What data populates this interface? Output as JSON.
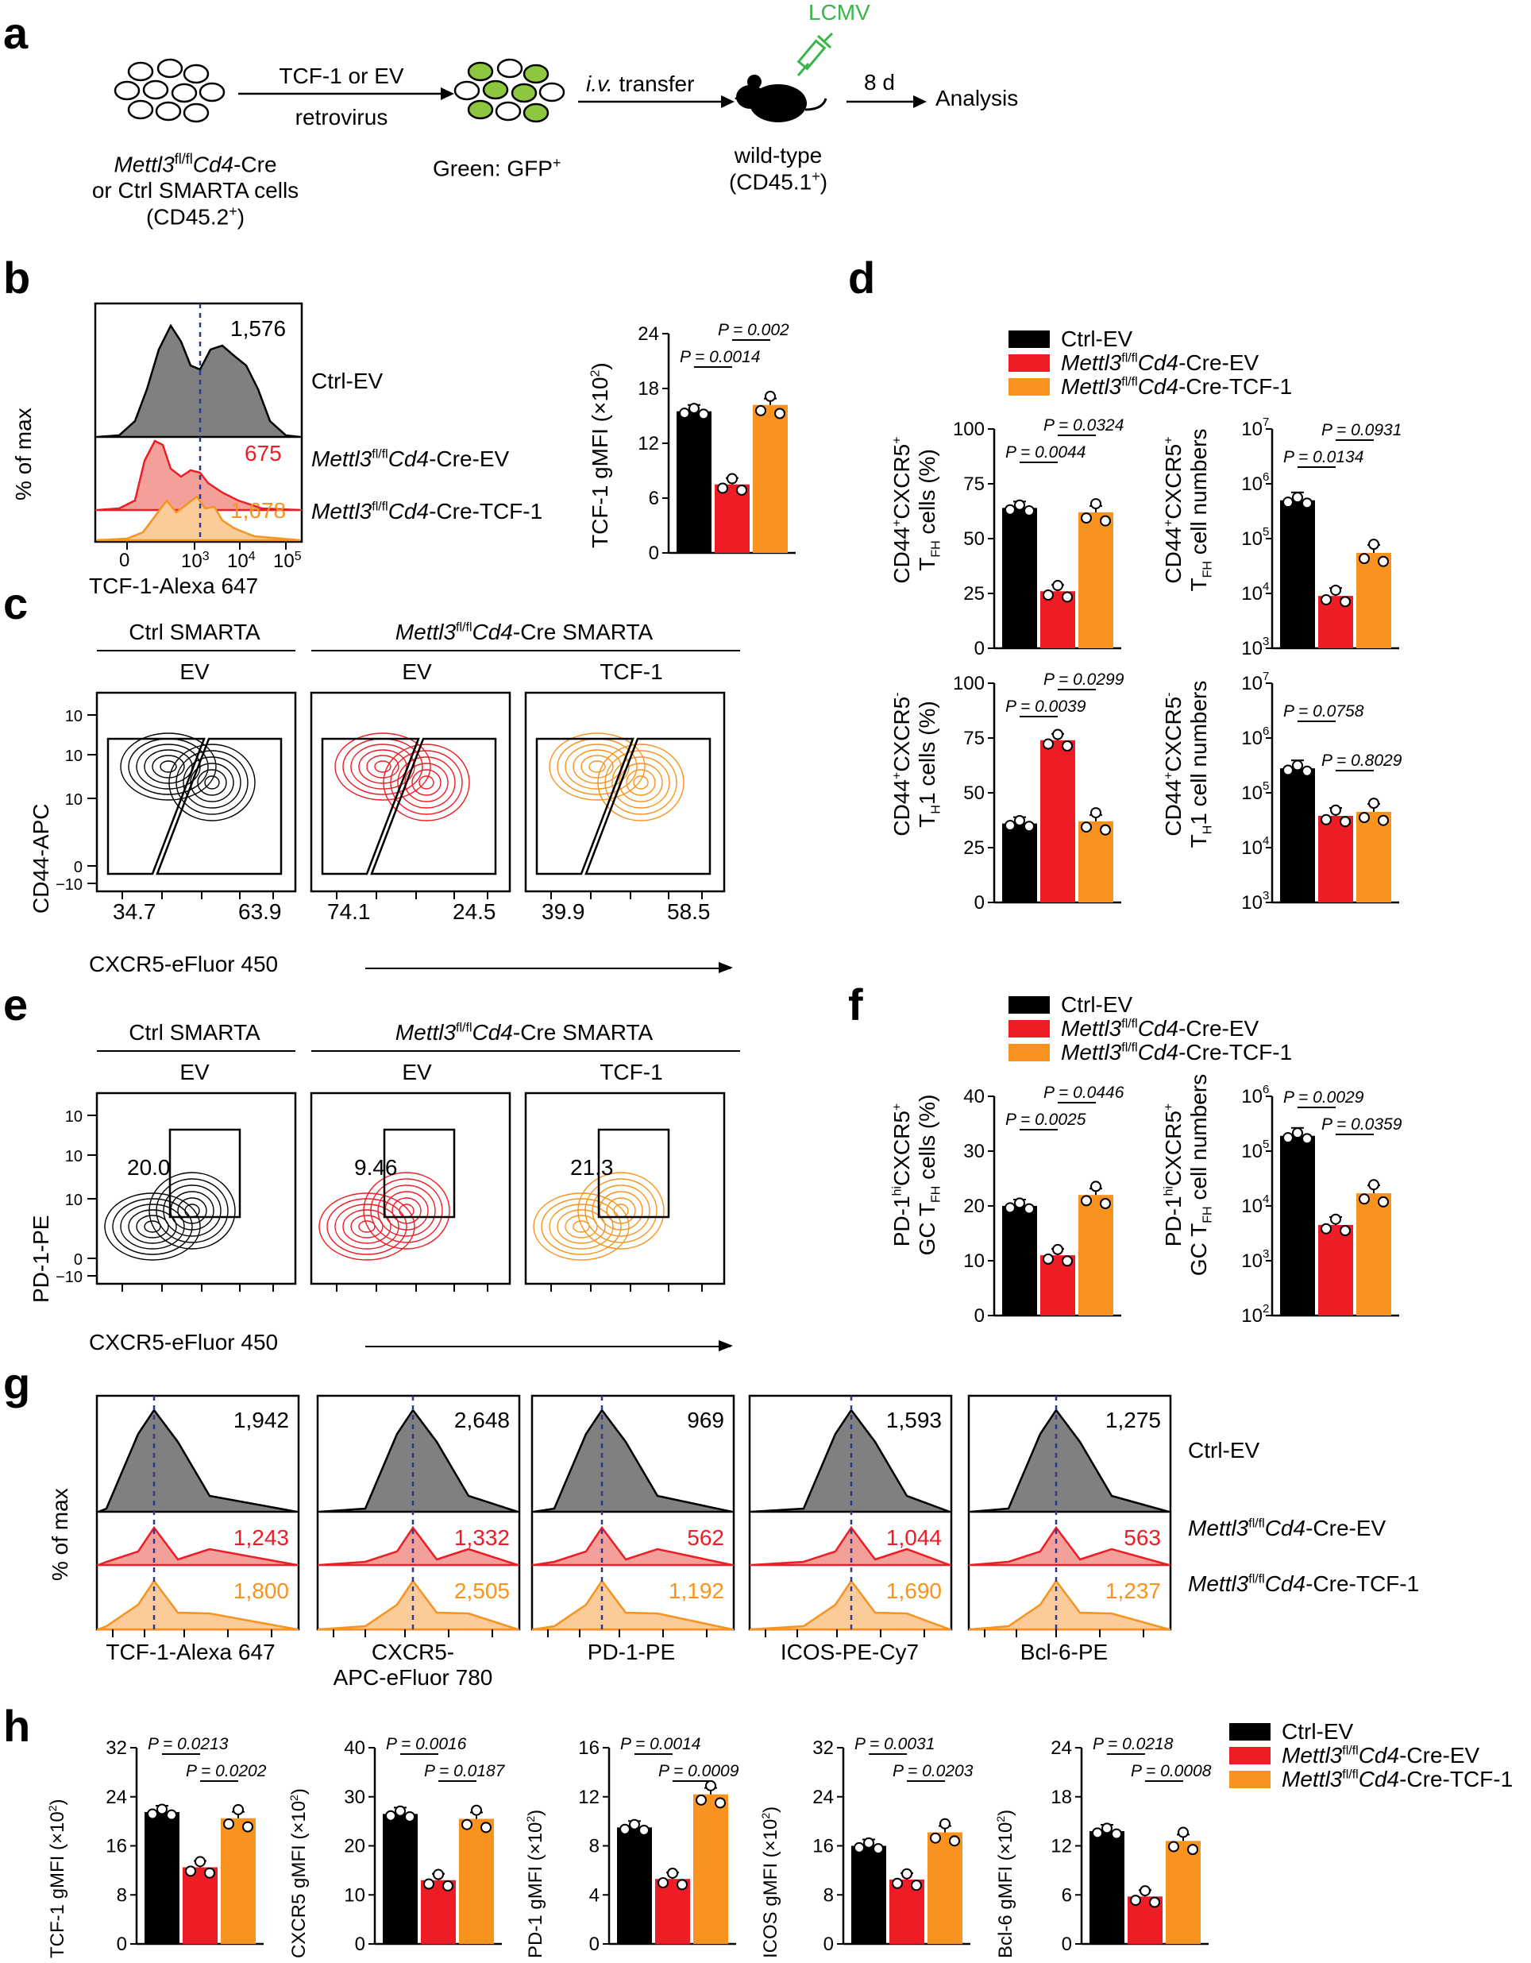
{
  "panels": {
    "a": "a",
    "b": "b",
    "c": "c",
    "d": "d",
    "e": "e",
    "f": "f",
    "g": "g",
    "h": "h"
  },
  "colors": {
    "ctrl": "#000000",
    "ko": "#ee1c25",
    "tcf": "#f7931e",
    "gfp": "#8dc63f",
    "lcmv": "#39b54a",
    "dash": "#2b3990"
  },
  "schematic": {
    "cells_label_line1_italic": "Mettl3",
    "cells_label_line1_sup": "fl/fl",
    "cells_label_line1_italic2": "Cd4",
    "cells_label_line1_rest": "-Cre",
    "cells_label_line2": "or Ctrl SMARTA cells",
    "cells_label_line3": "(CD45.2",
    "cells_label_line3_sup": "+",
    "cells_label_line3_end": ")",
    "arrow1_top": "TCF-1 or EV",
    "arrow1_bottom": "retrovirus",
    "green_label": "Green: GFP",
    "green_label_sup": "+",
    "transfer_italic": "i.v.",
    "transfer_rest": " transfer",
    "lcmv": "LCMV",
    "mouse_line1": "wild-type",
    "mouse_line2": "(CD45.1",
    "mouse_line2_sup": "+",
    "mouse_line2_end": ")",
    "time": "8 d",
    "analysis": "Analysis"
  },
  "groups": {
    "ctrl_ev": "Ctrl-EV",
    "ko_ev_italic": "Mettl3",
    "ko_sup": "fl/fl",
    "ko_italic2": "Cd4",
    "ko_ev_rest": "-Cre-EV",
    "ko_tcf_rest": "-Cre-TCF-1"
  },
  "panel_b": {
    "ylabel": "% of max",
    "xlabel": "TCF-1-Alexa 647",
    "values": [
      "1,576",
      "675",
      "1,678"
    ],
    "xticks": [
      "0",
      "10",
      "10",
      "10"
    ],
    "xtick_exp": [
      "",
      "3",
      "4",
      "5"
    ],
    "bar_ylabel": "TCF-1 gMFI (×10",
    "bar_ylabel_sup": "2",
    "bar_ylabel_end": ")",
    "bar_yticks": [
      "0",
      "6",
      "12",
      "18",
      "24"
    ],
    "bar_p": [
      "P = 0.0014",
      "P = 0.002"
    ]
  },
  "panel_c": {
    "head_ctrl": "Ctrl SMARTA",
    "head_ko_italic": "Mettl3",
    "head_ko_sup": "fl/fl",
    "head_ko_italic2": "Cd4",
    "head_ko_rest": "-Cre SMARTA",
    "sub": [
      "EV",
      "EV",
      "TCF-1"
    ],
    "ylabel": "CD44-APC",
    "xlabel": "CXCR5-eFluor 450",
    "gates": [
      [
        "34.7",
        "63.9"
      ],
      [
        "74.1",
        "24.5"
      ],
      [
        "39.9",
        "58.5"
      ]
    ],
    "yticks": [
      "10",
      "10",
      "10",
      "0",
      "−10"
    ],
    "ytick_exp": [
      "5",
      "4",
      "3",
      "",
      "2"
    ]
  },
  "panel_d": {
    "tfh_pct_ylabel1": "CD44",
    "tfh_pct_ylabel1b": "CXCR5",
    "tfh_pct_ylabel2": "T",
    "tfh_pct_sub": "FH",
    "tfh_pct_ylabel2_end": " cells (%)",
    "tfh_num_ylabel2_end": " cell numbers",
    "th1_sub": "H",
    "th1_end": "1 cells (%)",
    "th1_num_end": "1 cell numbers",
    "pct_yticks": [
      "0",
      "25",
      "50",
      "75",
      "100"
    ],
    "log_yticks": [
      "10",
      "10",
      "10",
      "10",
      "10"
    ],
    "log_exp": [
      "3",
      "4",
      "5",
      "6",
      "7"
    ],
    "p_tfh_pct": [
      "P = 0.0044",
      "P = 0.0324"
    ],
    "p_tfh_num": [
      "P = 0.0134",
      "P = 0.0931"
    ],
    "p_th1_pct": [
      "P = 0.0039",
      "P = 0.0299"
    ],
    "p_th1_num": [
      "P = 0.0758",
      "P = 0.8029"
    ]
  },
  "panel_e": {
    "ylabel": "PD-1-PE",
    "xlabel": "CXCR5-eFluor 450",
    "gates": [
      "20.0",
      "9.46",
      "21.3"
    ]
  },
  "panel_f": {
    "pct_ylabel1": "PD-1",
    "hi": "hi",
    "pct_ylabel2": "GC T",
    "pct_end": " cells (%)",
    "num_end": " cell numbers",
    "pct_yticks": [
      "0",
      "10",
      "20",
      "30",
      "40"
    ],
    "log_exp": [
      "2",
      "3",
      "4",
      "5",
      "6"
    ],
    "p_pct": [
      "P = 0.0025",
      "P = 0.0446"
    ],
    "p_num": [
      "P = 0.0029",
      "P = 0.0359"
    ]
  },
  "panel_g": {
    "ylabel": "% of max",
    "xlabels": [
      "TCF-1-Alexa 647",
      "CXCR5-",
      "PD-1-PE",
      "ICOS-PE-Cy7",
      "Bcl-6-PE"
    ],
    "xlabel2": "APC-eFluor 780",
    "values": [
      [
        "1,942",
        "1,243",
        "1,800"
      ],
      [
        "2,648",
        "1,332",
        "2,505"
      ],
      [
        "969",
        "562",
        "1,192"
      ],
      [
        "1,593",
        "1,044",
        "1,690"
      ],
      [
        "1,275",
        "563",
        "1,237"
      ]
    ]
  },
  "panel_h": {
    "ylabels": [
      "TCF-1 gMFI (×10",
      "CXCR5 gMFI (×10",
      "PD-1 gMFI (×10",
      "ICOS gMFI (×10",
      "Bcl-6 gMFI (×10"
    ],
    "yticks": [
      [
        "0",
        "8",
        "16",
        "24",
        "32"
      ],
      [
        "0",
        "10",
        "20",
        "30",
        "40"
      ],
      [
        "0",
        "4",
        "8",
        "12",
        "16"
      ],
      [
        "0",
        "8",
        "16",
        "24",
        "32"
      ],
      [
        "0",
        "6",
        "12",
        "18",
        "24"
      ]
    ],
    "p": [
      [
        "P = 0.0213",
        "P = 0.0202"
      ],
      [
        "P = 0.0016",
        "P = 0.0187"
      ],
      [
        "P = 0.0014",
        "P = 0.0009"
      ],
      [
        "P = 0.0031",
        "P = 0.0203"
      ],
      [
        "P = 0.0218",
        "P = 0.0008"
      ]
    ]
  },
  "chart_data": [
    {
      "type": "bar",
      "title": "b",
      "ylabel": "TCF-1 gMFI (×10^2)",
      "categories": [
        "Ctrl-EV",
        "Mettl3fl/fl Cd4-Cre-EV",
        "Mettl3fl/fl Cd4-Cre-TCF-1"
      ],
      "values": [
        15.5,
        7.5,
        16.2
      ],
      "ylim": [
        0,
        24
      ]
    },
    {
      "type": "bar",
      "title": "d TFH %",
      "categories": [
        "Ctrl-EV",
        "KO-EV",
        "KO-TCF-1"
      ],
      "values": [
        64,
        26,
        62
      ],
      "ylim": [
        0,
        100
      ]
    },
    {
      "type": "bar",
      "title": "d TFH numbers (log)",
      "categories": [
        "Ctrl-EV",
        "KO-EV",
        "KO-TCF-1"
      ],
      "values": [
        500000,
        9000,
        55000
      ],
      "ylim": [
        1000,
        10000000
      ]
    },
    {
      "type": "bar",
      "title": "d TH1 %",
      "categories": [
        "Ctrl-EV",
        "KO-EV",
        "KO-TCF-1"
      ],
      "values": [
        36,
        74,
        37
      ],
      "ylim": [
        0,
        100
      ]
    },
    {
      "type": "bar",
      "title": "d TH1 numbers (log)",
      "categories": [
        "Ctrl-EV",
        "KO-EV",
        "KO-TCF-1"
      ],
      "values": [
        280000,
        38000,
        45000
      ],
      "ylim": [
        1000,
        10000000
      ]
    },
    {
      "type": "bar",
      "title": "f GC TFH %",
      "categories": [
        "Ctrl-EV",
        "KO-EV",
        "KO-TCF-1"
      ],
      "values": [
        20,
        11,
        22
      ],
      "ylim": [
        0,
        40
      ]
    },
    {
      "type": "bar",
      "title": "f GC TFH numbers (log)",
      "categories": [
        "Ctrl-EV",
        "KO-EV",
        "KO-TCF-1"
      ],
      "values": [
        190000,
        4500,
        17000
      ],
      "ylim": [
        100,
        1000000
      ]
    },
    {
      "type": "bar",
      "title": "h TCF-1",
      "categories": [
        "Ctrl-EV",
        "KO-EV",
        "KO-TCF-1"
      ],
      "values": [
        21.5,
        12.5,
        20.5
      ],
      "ylim": [
        0,
        32
      ]
    },
    {
      "type": "bar",
      "title": "h CXCR5",
      "categories": [
        "Ctrl-EV",
        "KO-EV",
        "KO-TCF-1"
      ],
      "values": [
        26.5,
        13,
        25.5
      ],
      "ylim": [
        0,
        40
      ]
    },
    {
      "type": "bar",
      "title": "h PD-1",
      "categories": [
        "Ctrl-EV",
        "KO-EV",
        "KO-TCF-1"
      ],
      "values": [
        9.5,
        5.3,
        12.2
      ],
      "ylim": [
        0,
        16
      ]
    },
    {
      "type": "bar",
      "title": "h ICOS",
      "categories": [
        "Ctrl-EV",
        "KO-EV",
        "KO-TCF-1"
      ],
      "values": [
        16,
        10.5,
        18.2
      ],
      "ylim": [
        0,
        32
      ]
    },
    {
      "type": "bar",
      "title": "h Bcl-6",
      "categories": [
        "Ctrl-EV",
        "KO-EV",
        "KO-TCF-1"
      ],
      "values": [
        13.8,
        5.8,
        12.6
      ],
      "ylim": [
        0,
        24
      ]
    }
  ]
}
